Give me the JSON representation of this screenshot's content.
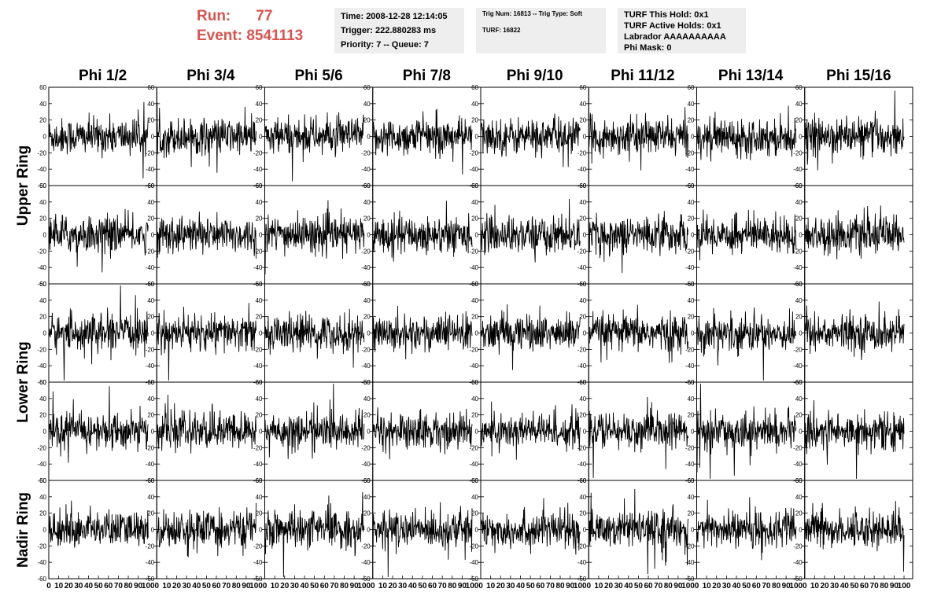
{
  "header": {
    "run_label": "Run:",
    "run_value": "77",
    "event_label": "Event:",
    "event_value": "8541113"
  },
  "time_box": {
    "time": "Time: 2008-12-28 12:14:05",
    "trigger": "Trigger: 222.880283 ms",
    "priority": "Priority: 7 -- Queue: 7"
  },
  "trig_box": {
    "trig": "Trig Num: 16813 -- Trig Type: Soft",
    "turf": "TURF: 16822"
  },
  "turf_box": {
    "hold": "TURF This Hold: 0x1",
    "active": "TURF Active Holds: 0x1",
    "labrador": "Labrador AAAAAAAAAA",
    "phimask": "Phi Mask: 0"
  },
  "colors": {
    "header_red": "#d9534f",
    "info_bg": "#eeeeee",
    "trace": "#000000"
  },
  "chart_data": {
    "type": "line",
    "columns": [
      "Phi 1/2",
      "Phi 3/4",
      "Phi 5/6",
      "Phi 7/8",
      "Phi 9/10",
      "Phi 11/12",
      "Phi 13/14",
      "Phi 15/16"
    ],
    "rings": [
      "Upper Ring",
      "Lower Ring",
      "Nadir Ring"
    ],
    "rows_per_ring": [
      2,
      2,
      1
    ],
    "xlim": [
      0,
      100
    ],
    "ylim": [
      -60,
      60
    ],
    "y_ticks": [
      -60,
      -40,
      -20,
      0,
      20,
      40,
      60
    ],
    "x_ticks": [
      0,
      10,
      20,
      30,
      40,
      50,
      60,
      70,
      80,
      90,
      100
    ],
    "samples_per_trace": 260,
    "noise_amplitude": 20,
    "grid": false
  }
}
